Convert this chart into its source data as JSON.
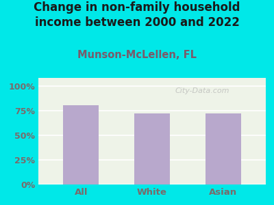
{
  "title": "Change in non-family household\nincome between 2000 and 2022",
  "subtitle": "Munson-McLellen, FL",
  "categories": [
    "All",
    "White",
    "Asian"
  ],
  "values": [
    80,
    72,
    72
  ],
  "bar_color": "#b8a8cc",
  "title_color": "#1a1a1a",
  "subtitle_color": "#7a5a6a",
  "background_color": "#00e8e8",
  "plot_bg": "#eef3e8",
  "yticks": [
    0,
    25,
    50,
    75,
    100
  ],
  "ytick_labels": [
    "0%",
    "25%",
    "50%",
    "75%",
    "100%"
  ],
  "ylim": [
    0,
    108
  ],
  "tick_color": "#7a6a6a",
  "xtick_color": "#7a6a6a",
  "watermark": "City-Data.com",
  "title_fontsize": 12,
  "subtitle_fontsize": 10.5
}
